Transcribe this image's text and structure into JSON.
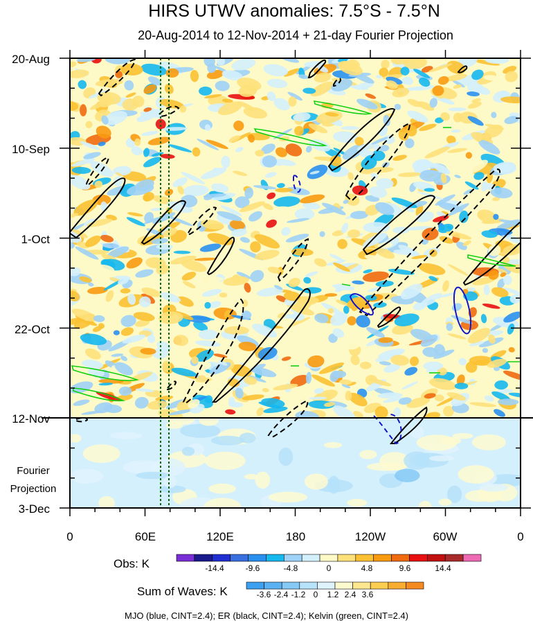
{
  "chart_data": {
    "type": "heatmap",
    "title": "HIRS UTWV anomalies: 7.5°S - 7.5°N",
    "subtitle": "20-Aug-2014 to 12-Nov-2014 + 21-day Fourier Projection",
    "x_tick_labels": [
      "0",
      "60E",
      "120E",
      "180",
      "120W",
      "60W",
      "0"
    ],
    "y_tick_labels": [
      "20-Aug",
      "10-Sep",
      "1-Oct",
      "22-Oct",
      "12-Nov",
      "3-Dec"
    ],
    "projection_start_label": "12-Nov",
    "projection_label_line1": "Fourier",
    "projection_label_line2": "Projection",
    "reference_lines_longitude": [
      "72E",
      "78E"
    ],
    "obs_colorbar": {
      "label": "Obs: K",
      "tick_labels": [
        "-14.4",
        "-9.6",
        "-4.8",
        "0",
        "4.8",
        "9.6",
        "14.4"
      ],
      "colors": [
        "#7a2fd6",
        "#1a1a8c",
        "#1f2fd0",
        "#3a6fe0",
        "#2a90f0",
        "#16b8ee",
        "#9ed2f6",
        "#d4f0fc",
        "#fefac8",
        "#fde07a",
        "#fbc132",
        "#f89a10",
        "#f06a10",
        "#e81010",
        "#c01010",
        "#a82a2a",
        "#ee6ab4"
      ]
    },
    "waves_colorbar": {
      "label": "Sum of Waves: K",
      "tick_labels": [
        "-3.6",
        "-2.4",
        "-1.2",
        "0",
        "1.2",
        "2.4",
        "3.6"
      ],
      "colors": [
        "#3c9ff0",
        "#5ab2f2",
        "#86c9f6",
        "#b6e2fa",
        "#dff3fd",
        "#fefad0",
        "#fde690",
        "#fbcd50",
        "#f8ad30",
        "#f58a20"
      ]
    },
    "footnote": "MJO (blue, CINT=2.4); ER (black, CINT=2.4); Kelvin (green, CINT=2.4)",
    "contour_colors": {
      "mjo": "#1414c8",
      "er": "#000000",
      "kelvin": "#10d010"
    }
  }
}
